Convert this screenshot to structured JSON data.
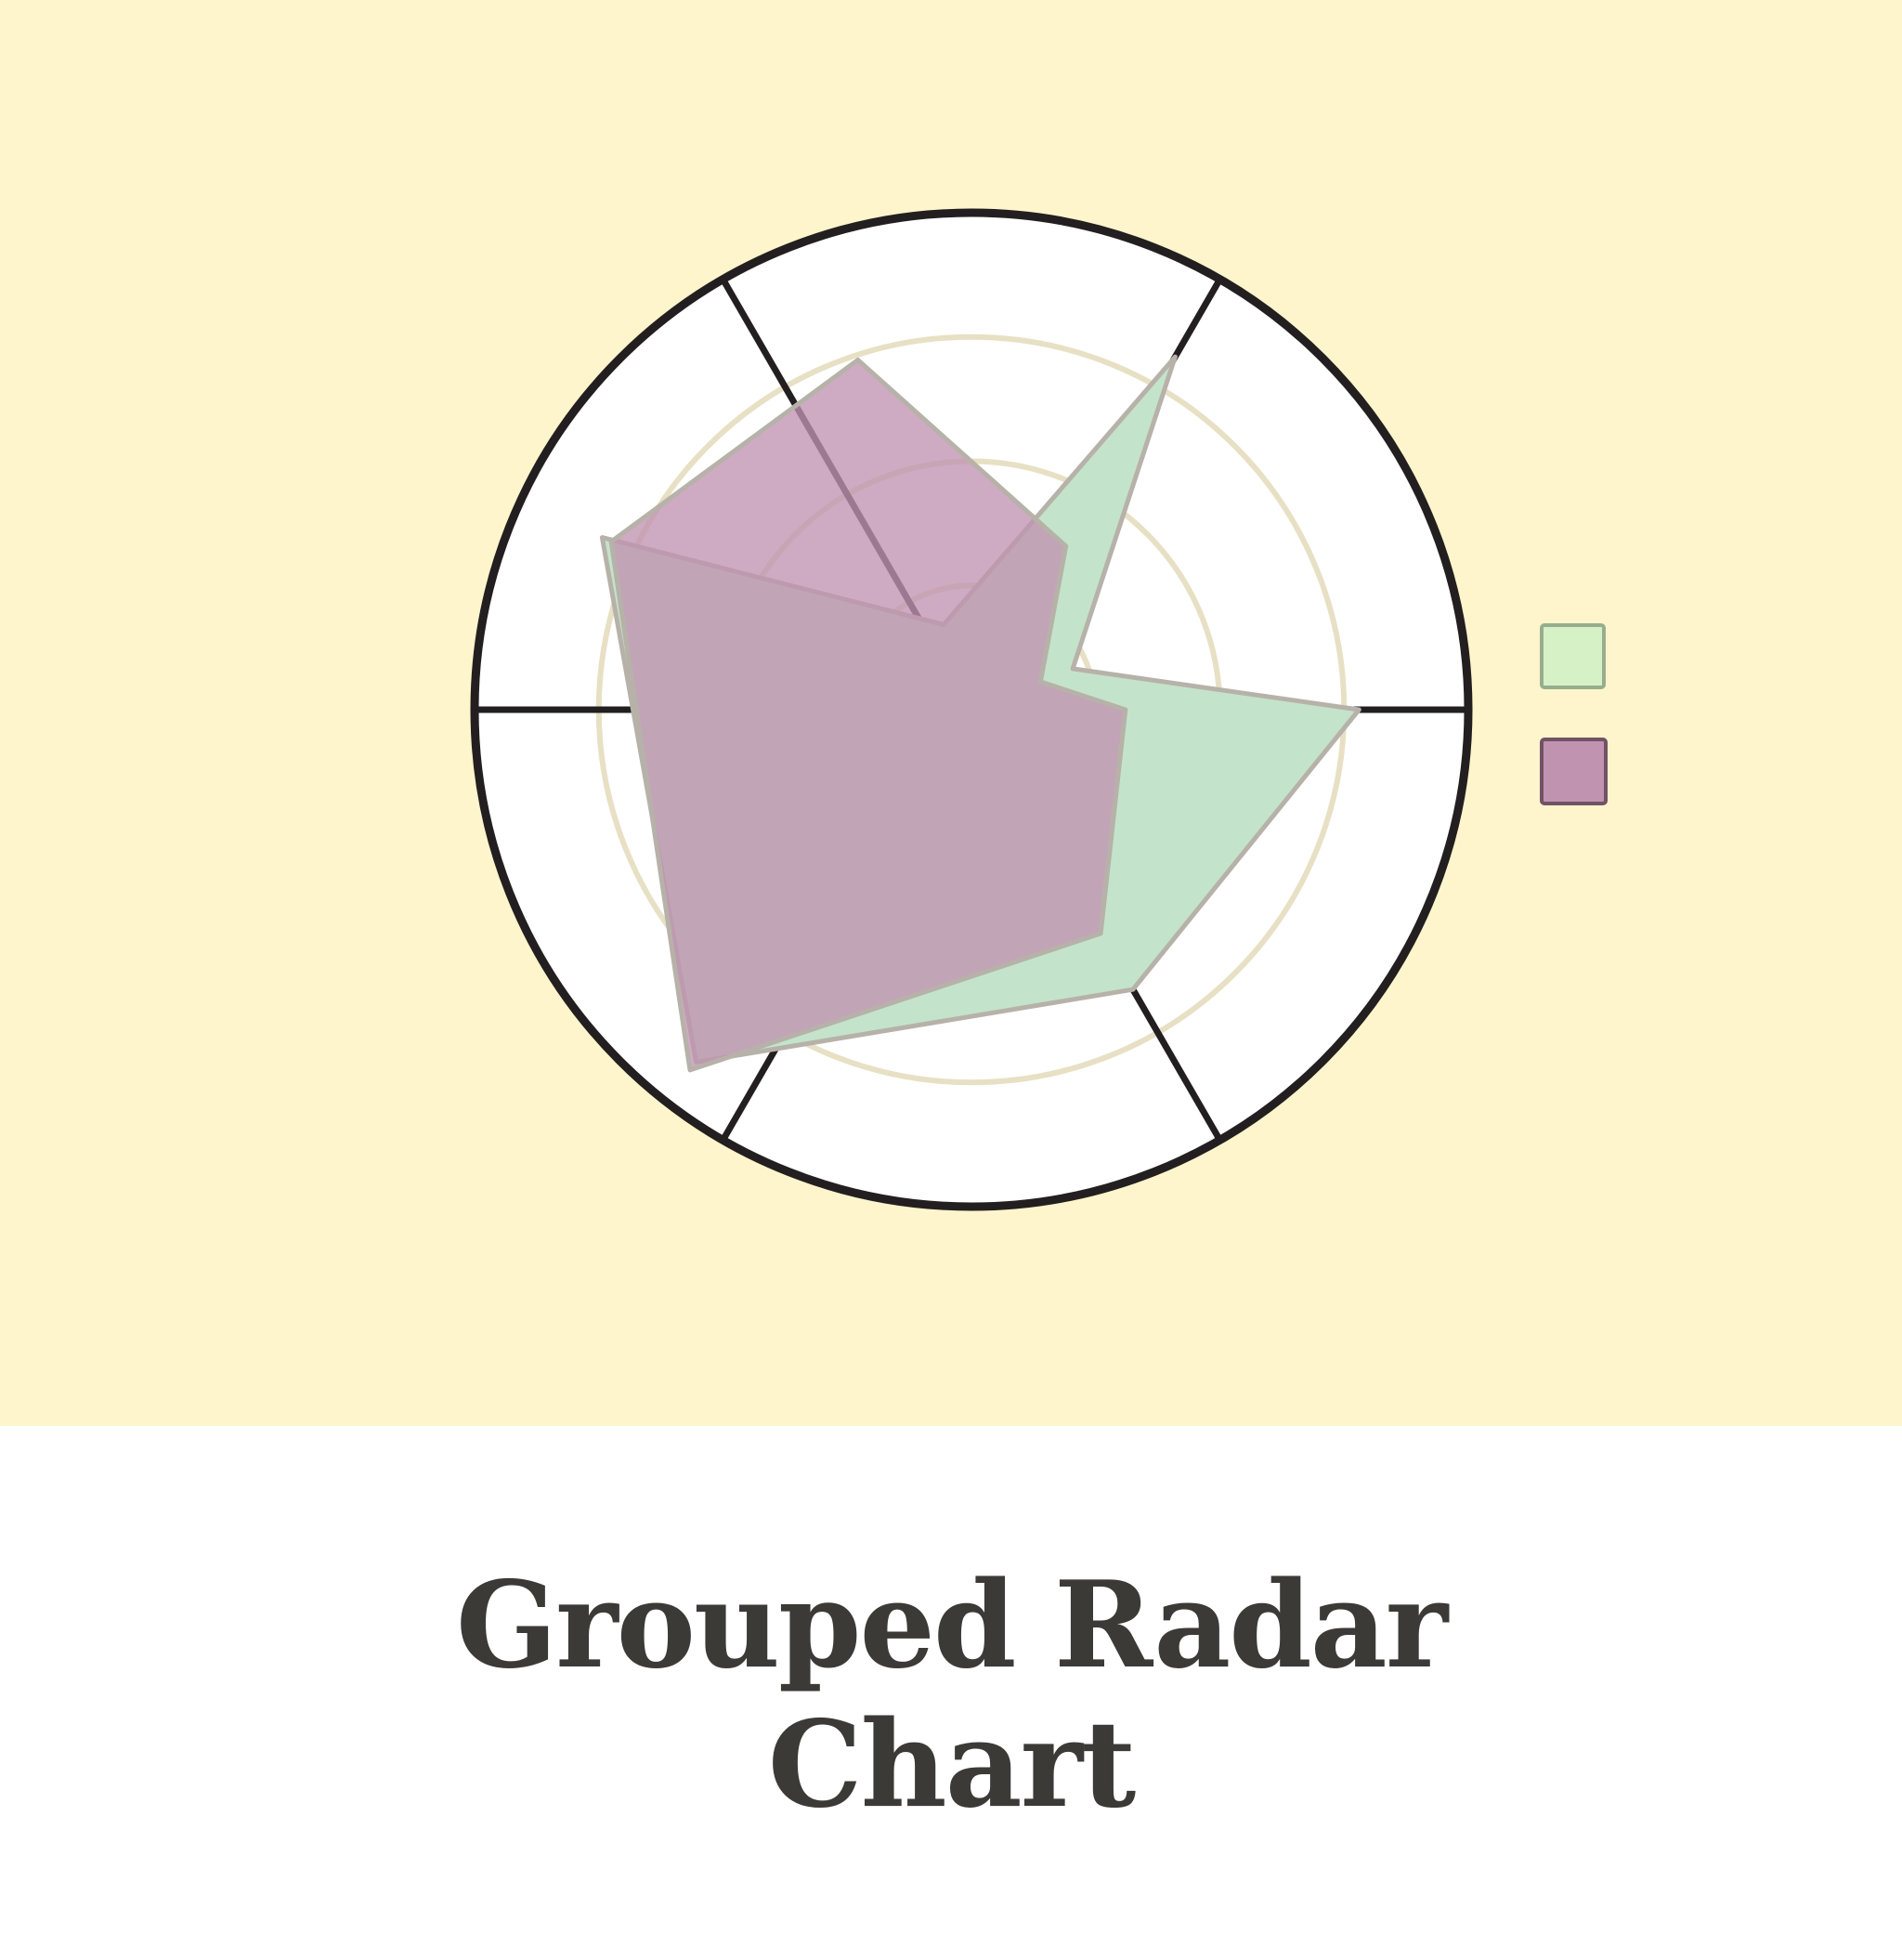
{
  "caption": {
    "line1": "Grouped Radar",
    "line2": "Chart"
  },
  "colors": {
    "background": "#fef5cc",
    "plot_fill": "#ffffff",
    "outline": "#231f20",
    "grid_ring": "#e8e0c4",
    "series_edge": "#b7b2a9",
    "title_text": "#3c3a37"
  },
  "chart_data": {
    "type": "radar",
    "axes_count": 6,
    "r_range": [
      0,
      100
    ],
    "grid_rings": [
      25,
      50,
      75
    ],
    "grid": true,
    "legend_position": "right",
    "series": [
      {
        "color": "#c4e3cb",
        "legend_color": "#d6f1c6",
        "values": [
          78,
          22,
          82,
          18,
          82,
          90,
          65
        ]
      },
      {
        "color": "#c093b1",
        "legend_color": "#c093b1",
        "values": [
          31,
          15,
          38,
          74,
          80,
          92,
          52
        ]
      }
    ],
    "series_angles_deg": [
      0,
      22,
      60,
      108,
      155,
      232,
      300
    ]
  }
}
